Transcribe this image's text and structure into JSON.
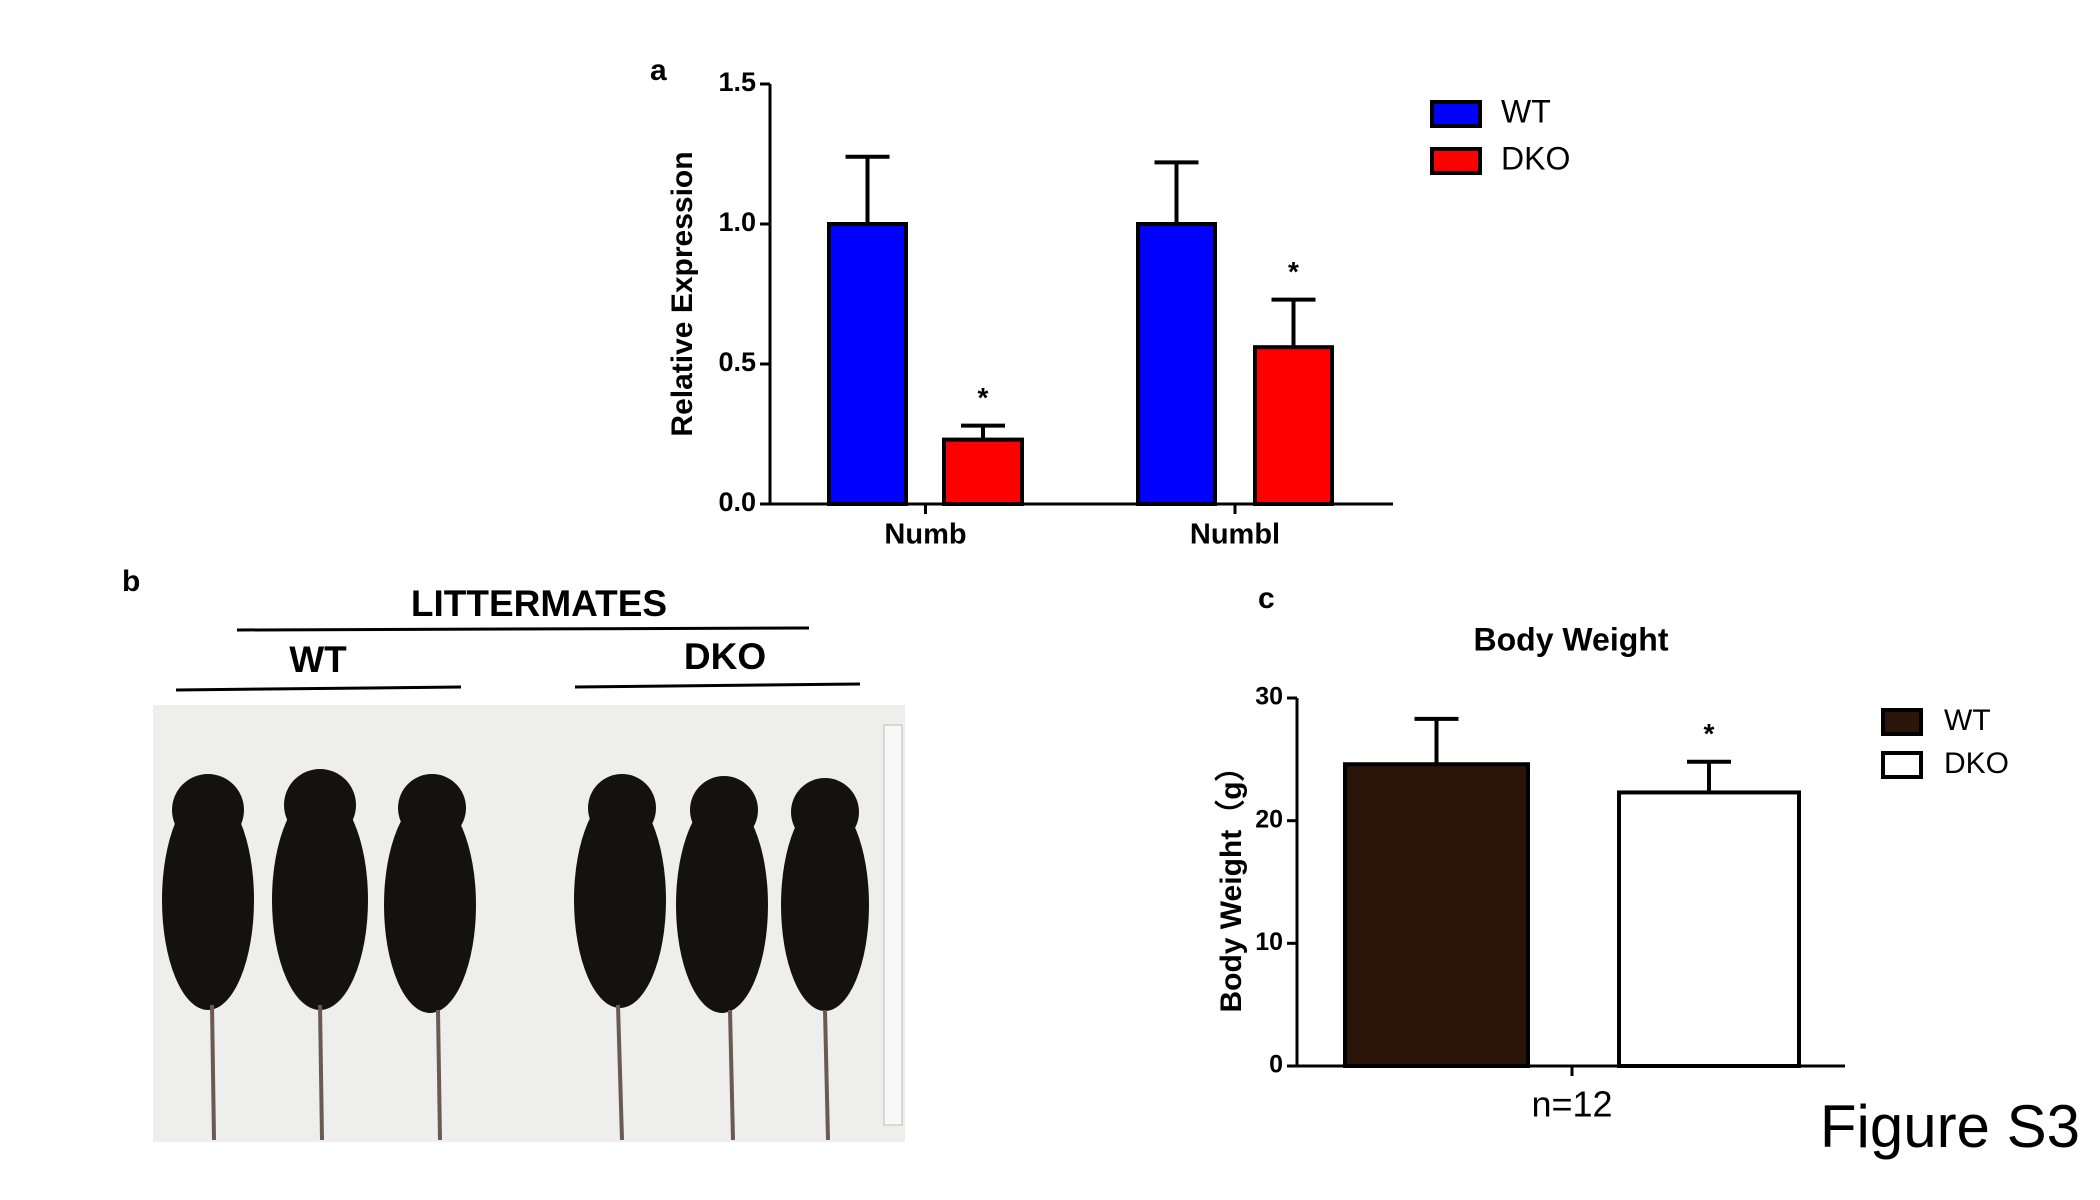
{
  "panel_labels": [
    "a",
    "b",
    "c"
  ],
  "photo": {
    "header": "LITTERMATES",
    "groups": [
      "WT",
      "DKO"
    ]
  },
  "figure_label": "Figure S3",
  "chart_data": [
    {
      "type": "bar",
      "ylabel": "Relative Expression",
      "categories": [
        "Numb",
        "Numbl"
      ],
      "series": [
        {
          "name": "WT",
          "color": "#0000ff",
          "values": [
            1.0,
            1.0
          ],
          "errors": [
            0.24,
            0.22
          ]
        },
        {
          "name": "DKO",
          "color": "#ff0000",
          "values": [
            0.23,
            0.56
          ],
          "errors": [
            0.05,
            0.17
          ],
          "marks": [
            "*",
            "*"
          ]
        }
      ],
      "ylim": [
        0,
        1.5
      ],
      "yticks": [
        {
          "value": 0,
          "label": "0.0"
        },
        0.5,
        {
          "value": 1,
          "label": "1.0"
        },
        1.5
      ]
    },
    {
      "type": "bar",
      "title": "Body Weight",
      "ylabel": "Body Weight（g）",
      "categories": [
        "n=12"
      ],
      "series": [
        {
          "name": "WT",
          "color": "#2b1408",
          "values": [
            24.6
          ],
          "errors": [
            3.7
          ]
        },
        {
          "name": "DKO",
          "color": "#ffffff",
          "values": [
            22.3
          ],
          "errors": [
            2.5
          ],
          "marks": [
            "*"
          ]
        }
      ],
      "ylim": [
        0,
        30
      ],
      "yticks": [
        0,
        10,
        20,
        30
      ]
    }
  ]
}
